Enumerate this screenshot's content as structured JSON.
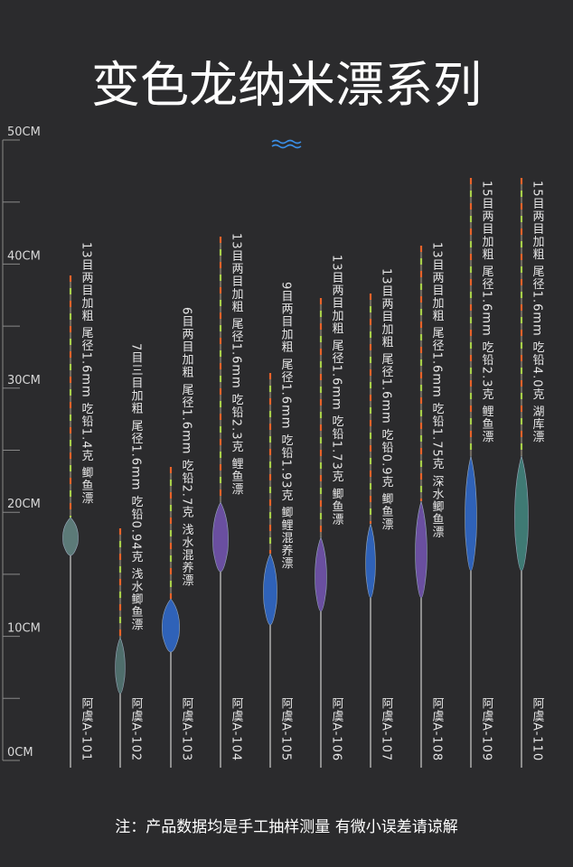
{
  "title": "变色龙纳米漂系列",
  "ruler": {
    "labels": [
      "50CM",
      "40CM",
      "30CM",
      "20CM",
      "10CM",
      "0CM"
    ]
  },
  "products": [
    {
      "desc": "13目两目加粗 尾径1.6mm 吃铅1.4克 鲫鱼漂",
      "model": "阿虞A-101"
    },
    {
      "desc": "7目三目加粗 尾径1.6mm 吃铅0.94克 浅水鲫鱼漂",
      "model": "阿虞A-102"
    },
    {
      "desc": "6目两目加粗 尾径1.6mm 吃铅2.7克 浅水混养漂",
      "model": "阿虞A-103"
    },
    {
      "desc": "13目两目加粗 尾径1.6mm 吃铅2.3克 鲤鱼漂",
      "model": "阿虞A-104"
    },
    {
      "desc": "9目两目加粗 尾径1.6mm 吃铅1.93克 鲫鲤混养漂",
      "model": "阿虞A-105"
    },
    {
      "desc": "13目两目加粗 尾径1.6mm 吃铅1.73克 鲫鱼漂",
      "model": "阿虞A-106"
    },
    {
      "desc": "13目两目加粗 尾径1.6mm 吃铅0.9克 鲫鱼漂",
      "model": "阿虞A-107"
    },
    {
      "desc": "13目两目加粗 尾径1.6mm 吃铅1.75克 深水鲫鱼漂",
      "model": "阿虞A-108"
    },
    {
      "desc": "15目两目加粗 尾径1.6mm 吃铅2.3克 鲤鱼漂",
      "model": "阿虞A-109"
    },
    {
      "desc": "15目两目加粗 尾径1.6mm 吃铅4.0克 湖库漂",
      "model": "阿虞A-110"
    }
  ],
  "note": "注：产品数据均是手工抽样测量 有微小误差请谅解"
}
